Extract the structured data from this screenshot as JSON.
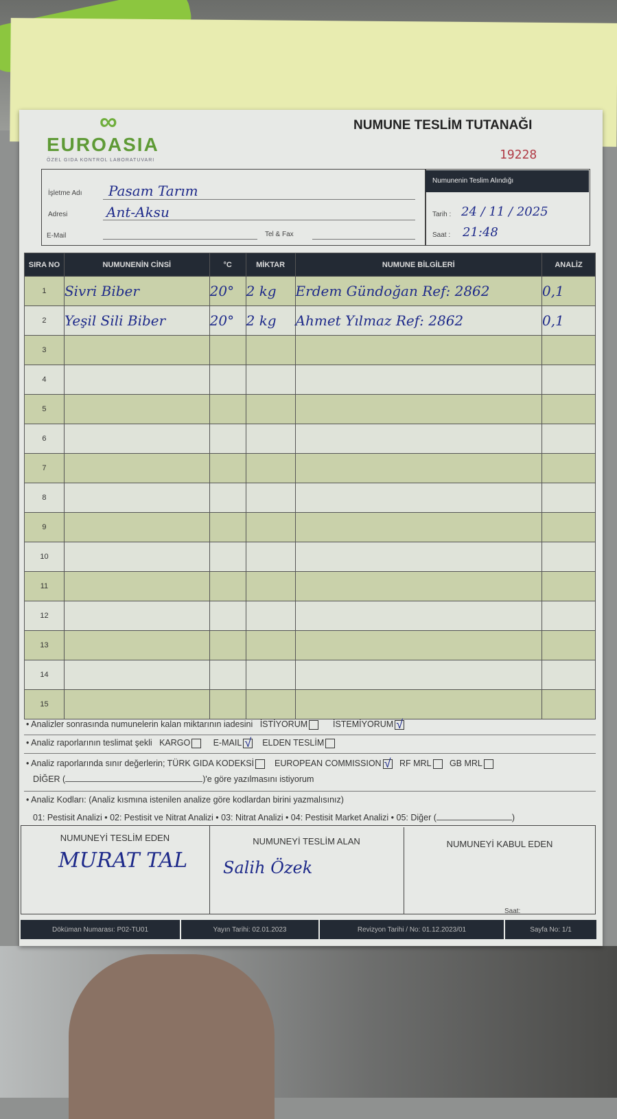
{
  "header": {
    "logo_text": "EUROASIA",
    "logo_subtitle": "ÖZEL GIDA KONTROL LABORATUVARI",
    "title": "NUMUNE TESLİM TUTANAĞI",
    "serial": "19228"
  },
  "client": {
    "name_label": "İşletme Adı",
    "name_value": "Pasam Tarım",
    "address_label": "Adresi",
    "address_value": "Ant-Aksu",
    "email_label": "E-Mail",
    "email_value": "",
    "tel_label": "Tel & Fax",
    "tel_value": ""
  },
  "receipt": {
    "heading": "Numunenin Teslim Alındığı",
    "date_label": "Tarih :",
    "date_value": "24 / 11 / 2025",
    "time_label": "Saat :",
    "time_value": "21:48"
  },
  "table": {
    "columns": [
      "SIRA NO",
      "NUMUNENİN CİNSİ",
      "°C",
      "MİKTAR",
      "NUMUNE BİLGİLERİ",
      "ANALİZ"
    ],
    "rows": [
      {
        "no": "1",
        "type": "Sivri Biber",
        "temp": "20°",
        "amount": "2 kg",
        "info": "Erdem Gündoğan  Ref: 2862",
        "analysis": "0,1"
      },
      {
        "no": "2",
        "type": "Yeşil Sili Biber",
        "temp": "20°",
        "amount": "2 kg",
        "info": "Ahmet Yılmaz  Ref: 2862",
        "analysis": "0,1"
      },
      {
        "no": "3"
      },
      {
        "no": "4"
      },
      {
        "no": "5"
      },
      {
        "no": "6"
      },
      {
        "no": "7"
      },
      {
        "no": "8"
      },
      {
        "no": "9"
      },
      {
        "no": "10"
      },
      {
        "no": "11"
      },
      {
        "no": "12"
      },
      {
        "no": "13"
      },
      {
        "no": "14"
      },
      {
        "no": "15"
      }
    ]
  },
  "options": {
    "return_text": "Analizler sonrasında numunelerin kalan miktarının iadesini",
    "return_yes": "İSTİYORUM",
    "return_no": "İSTEMİYORUM",
    "return_selected": "İSTEMİYORUM",
    "delivery_text": "Analiz raporlarının teslimat şekli",
    "delivery_cargo": "KARGO",
    "delivery_email": "E-MAIL",
    "delivery_hand": "ELDEN TESLİM",
    "delivery_selected": "E-MAIL",
    "limits_text": "Analiz raporlarında sınır değerlerin;",
    "limit_tgk": "TÜRK GIDA KODEKSİ",
    "limit_ec": "EUROPEAN COMMISSION",
    "limit_rf": "RF MRL",
    "limit_gb": "GB MRL",
    "limits_selected": "EUROPEAN COMMISSION",
    "other_prefix": "DİĞER (",
    "other_suffix": ")'e göre yazılmasını istiyorum",
    "codes_title": "Analiz Kodları: (Analiz kısmına istenilen analize göre kodlardan birini yazmalısınız)",
    "codes_list": "01: Pestisit Analizi • 02: Pestisit ve Nitrat Analizi • 03: Nitrat Analizi • 04: Pestisit Market Analizi • 05: Diğer (",
    "check_mark": "√"
  },
  "signatures": {
    "delivered_by": "NUMUNEYİ TESLİM EDEN",
    "delivered_by_name": "MURAT TAL",
    "received_by": "NUMUNEYİ TESLİM ALAN",
    "received_by_name": "Salih Özek",
    "accepted_by": "NUMUNEYİ KABUL EDEN",
    "time_label": "Saat:"
  },
  "footer": {
    "doc_no": "Döküman Numarası: P02-TU01",
    "pub_date": "Yayın Tarihi: 02.01.2023",
    "revision": "Revizyon Tarihi / No: 01.12.2023/01",
    "page": "Sayfa No: 1/1"
  },
  "colors": {
    "brand_green": "#6fae3c",
    "header_dark": "#232a34",
    "row_green": "#c9d1aa",
    "ink_blue": "#1e2a8a",
    "serial_red": "#b03a45"
  }
}
